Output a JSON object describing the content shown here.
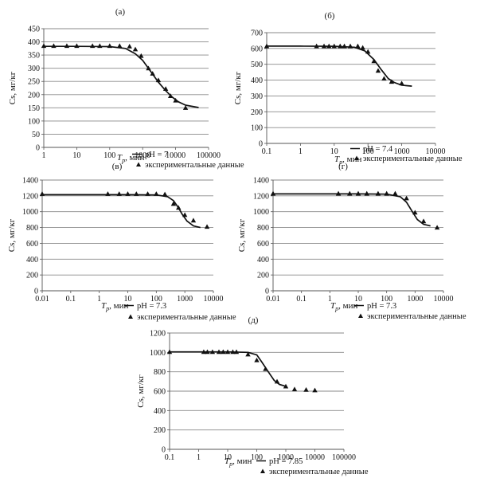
{
  "chart_data": [
    {
      "panel_label": "(а)",
      "type": "line",
      "xscale": "log",
      "xlim": [
        1,
        100000
      ],
      "ylim": [
        0,
        450
      ],
      "yticks": [
        0,
        50,
        100,
        150,
        200,
        250,
        300,
        350,
        400,
        450
      ],
      "xticks": [
        1,
        10,
        100,
        1000,
        10000,
        100000
      ],
      "xtick_labels": [
        "1",
        "10",
        "100",
        "1000",
        "10000",
        "100000"
      ],
      "xlabel_main": "T",
      "xlabel_sub": "p",
      "xlabel_unit": ", мин",
      "ylabel": "Cs, мг/кг",
      "series": [
        {
          "name": "pH = 7",
          "kind": "line",
          "x": [
            1,
            10,
            100,
            300,
            600,
            1000,
            2000,
            3000,
            5000,
            8000,
            12000,
            20000,
            50000
          ],
          "y": [
            383,
            383,
            382,
            375,
            355,
            330,
            278,
            247,
            215,
            190,
            173,
            160,
            151
          ]
        },
        {
          "name": "экспериментальные данные",
          "kind": "scatter",
          "x": [
            1,
            2,
            5,
            10,
            30,
            50,
            100,
            200,
            400,
            600,
            900,
            1500,
            2000,
            3000,
            5000,
            7000,
            10000,
            20000
          ],
          "y": [
            385,
            385,
            385,
            385,
            385,
            385,
            385,
            385,
            383,
            372,
            347,
            300,
            280,
            255,
            222,
            195,
            178,
            150
          ]
        }
      ]
    },
    {
      "panel_label": "(б)",
      "type": "line",
      "xscale": "log",
      "xlim": [
        0.1,
        10000
      ],
      "ylim": [
        0,
        700
      ],
      "yticks": [
        0,
        100,
        200,
        300,
        400,
        500,
        600,
        700
      ],
      "xticks": [
        0.1,
        1,
        10,
        100,
        1000,
        10000
      ],
      "xtick_labels": [
        "0.1",
        "1",
        "10",
        "100",
        "1000",
        "10000"
      ],
      "xlabel_main": "T",
      "xlabel_sub": "p",
      "xlabel_unit": ", мин",
      "ylabel": "Cs, мг/кг",
      "series": [
        {
          "name": "pH = 7.4",
          "kind": "line",
          "x": [
            0.1,
            1,
            10,
            40,
            80,
            150,
            250,
            400,
            600,
            1000,
            2000
          ],
          "y": [
            615,
            615,
            614,
            608,
            585,
            530,
            465,
            410,
            385,
            368,
            362
          ]
        },
        {
          "name": "экспериментальные данные",
          "kind": "scatter",
          "x": [
            0.1,
            3,
            5,
            7,
            10,
            15,
            20,
            30,
            50,
            70,
            100,
            150,
            200,
            300,
            500,
            1000
          ],
          "y": [
            615,
            615,
            615,
            615,
            615,
            615,
            615,
            615,
            615,
            605,
            580,
            520,
            460,
            410,
            390,
            380
          ]
        }
      ]
    },
    {
      "panel_label": "(в)",
      "type": "line",
      "xscale": "log",
      "xlim": [
        0.01,
        10000
      ],
      "ylim": [
        0,
        1400
      ],
      "yticks": [
        0,
        200,
        400,
        600,
        800,
        1000,
        1200,
        1400
      ],
      "xticks": [
        0.01,
        0.1,
        1,
        10,
        100,
        1000,
        10000
      ],
      "xtick_labels": [
        "0.01",
        "0.1",
        "1",
        "10",
        "100",
        "1000",
        "10000"
      ],
      "xlabel_main": "T",
      "xlabel_sub": "p",
      "xlabel_unit": ", мин",
      "ylabel": "Cs, мг/кг",
      "series": [
        {
          "name": "pH = 7.3",
          "kind": "line",
          "x": [
            0.01,
            1,
            10,
            100,
            250,
            400,
            600,
            800,
            1200,
            2000,
            3500
          ],
          "y": [
            1215,
            1215,
            1215,
            1212,
            1190,
            1140,
            1050,
            970,
            880,
            820,
            800
          ]
        },
        {
          "name": "экспериментальные данные",
          "kind": "scatter",
          "x": [
            0.01,
            2,
            5,
            10,
            20,
            50,
            100,
            200,
            400,
            600,
            1000,
            2000,
            6000
          ],
          "y": [
            1225,
            1225,
            1225,
            1225,
            1225,
            1225,
            1225,
            1220,
            1100,
            1050,
            960,
            890,
            810
          ]
        }
      ]
    },
    {
      "panel_label": "(г)",
      "type": "line",
      "xscale": "log",
      "xlim": [
        0.01,
        10000
      ],
      "ylim": [
        0,
        1400
      ],
      "yticks": [
        0,
        200,
        400,
        600,
        800,
        1000,
        1200,
        1400
      ],
      "xticks": [
        0.01,
        0.1,
        1,
        10,
        100,
        1000,
        10000
      ],
      "xtick_labels": [
        "0.01",
        "0.1",
        "1",
        "10",
        "100",
        "1000",
        "10000"
      ],
      "xlabel_main": "T",
      "xlabel_sub": "p",
      "xlabel_unit": ", мин",
      "ylabel": "Cs, мг/кг",
      "series": [
        {
          "name": "pH = 7.3",
          "kind": "line",
          "x": [
            0.01,
            1,
            10,
            100,
            300,
            500,
            800,
            1200,
            2000,
            3500
          ],
          "y": [
            1225,
            1225,
            1225,
            1222,
            1190,
            1120,
            1000,
            900,
            840,
            820
          ]
        },
        {
          "name": "экспериментальные данные",
          "kind": "scatter",
          "x": [
            0.01,
            2,
            5,
            10,
            20,
            50,
            100,
            200,
            500,
            1000,
            2000,
            6000
          ],
          "y": [
            1230,
            1230,
            1230,
            1230,
            1230,
            1230,
            1230,
            1230,
            1170,
            990,
            880,
            800
          ]
        }
      ]
    },
    {
      "panel_label": "(д)",
      "type": "line",
      "xscale": "log",
      "xlim": [
        0.1,
        100000
      ],
      "ylim": [
        0,
        1200
      ],
      "yticks": [
        0,
        200,
        400,
        600,
        800,
        1000,
        1200
      ],
      "xticks": [
        0.1,
        1,
        10,
        100,
        1000,
        10000,
        100000
      ],
      "xtick_labels": [
        "0.1",
        "1",
        "10",
        "100",
        "1000",
        "10000",
        "100000"
      ],
      "xlabel_main": "T",
      "xlabel_sub": "p",
      "xlabel_unit": ", мин",
      "ylabel": "Cs, мг/кг",
      "series": [
        {
          "name": "pH = 7.85",
          "kind": "line",
          "x": [
            0.1,
            1,
            10,
            50,
            100,
            150,
            250,
            400,
            600,
            1000
          ],
          "y": [
            1005,
            1005,
            1005,
            1000,
            975,
            900,
            800,
            710,
            670,
            650
          ]
        },
        {
          "name": "экспериментальные данные",
          "kind": "scatter",
          "x": [
            0.1,
            1.5,
            2,
            3,
            5,
            7,
            10,
            15,
            20,
            50,
            100,
            200,
            500,
            1000,
            2000,
            5000,
            10000
          ],
          "y": [
            1005,
            1005,
            1005,
            1005,
            1005,
            1005,
            1005,
            1005,
            1005,
            980,
            920,
            830,
            700,
            650,
            620,
            615,
            610
          ]
        }
      ]
    }
  ]
}
